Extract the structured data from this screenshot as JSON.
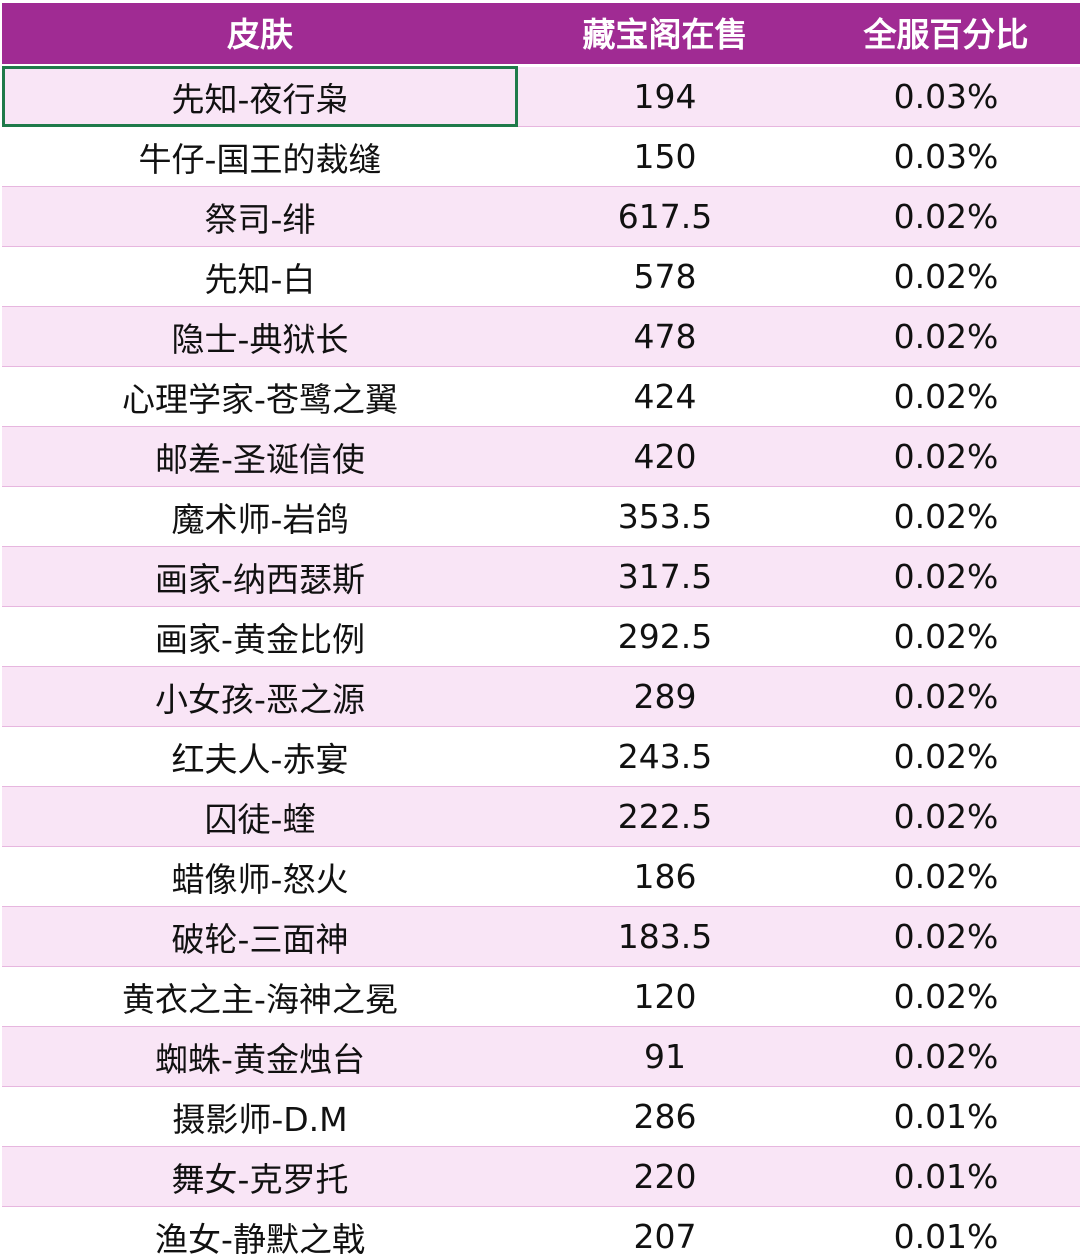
{
  "table": {
    "headers": {
      "skin": "皮肤",
      "stock": "藏宝阁在售",
      "percent": "全服百分比"
    },
    "rows": [
      {
        "skin": "先知-夜行枭",
        "stock": "194",
        "percent": "0.03%"
      },
      {
        "skin": "牛仔-国王的裁缝",
        "stock": "150",
        "percent": "0.03%"
      },
      {
        "skin": "祭司-绯",
        "stock": "617.5",
        "percent": "0.02%"
      },
      {
        "skin": "先知-白",
        "stock": "578",
        "percent": "0.02%"
      },
      {
        "skin": "隐士-典狱长",
        "stock": "478",
        "percent": "0.02%"
      },
      {
        "skin": "心理学家-苍鹭之翼",
        "stock": "424",
        "percent": "0.02%"
      },
      {
        "skin": "邮差-圣诞信使",
        "stock": "420",
        "percent": "0.02%"
      },
      {
        "skin": "魔术师-岩鸽",
        "stock": "353.5",
        "percent": "0.02%"
      },
      {
        "skin": "画家-纳西瑟斯",
        "stock": "317.5",
        "percent": "0.02%"
      },
      {
        "skin": "画家-黄金比例",
        "stock": "292.5",
        "percent": "0.02%"
      },
      {
        "skin": "小女孩-恶之源",
        "stock": "289",
        "percent": "0.02%"
      },
      {
        "skin": "红夫人-赤宴",
        "stock": "243.5",
        "percent": "0.02%"
      },
      {
        "skin": "囚徒-蝰",
        "stock": "222.5",
        "percent": "0.02%"
      },
      {
        "skin": "蜡像师-怒火",
        "stock": "186",
        "percent": "0.02%"
      },
      {
        "skin": "破轮-三面神",
        "stock": "183.5",
        "percent": "0.02%"
      },
      {
        "skin": "黄衣之主-海神之冕",
        "stock": "120",
        "percent": "0.02%"
      },
      {
        "skin": "蜘蛛-黄金烛台",
        "stock": "91",
        "percent": "0.02%"
      },
      {
        "skin": "摄影师-D.M",
        "stock": "286",
        "percent": "0.01%"
      },
      {
        "skin": "舞女-克罗托",
        "stock": "220",
        "percent": "0.01%"
      },
      {
        "skin": "渔女-静默之戟",
        "stock": "207",
        "percent": "0.01%"
      }
    ]
  },
  "colors": {
    "header_bg": "#a02b93",
    "header_text": "#ffffff",
    "row_odd_bg": "#f9e5f6",
    "row_even_bg": "#ffffff",
    "row_border": "#e7b6df",
    "selected_cell_border": "#1f7a4a"
  }
}
